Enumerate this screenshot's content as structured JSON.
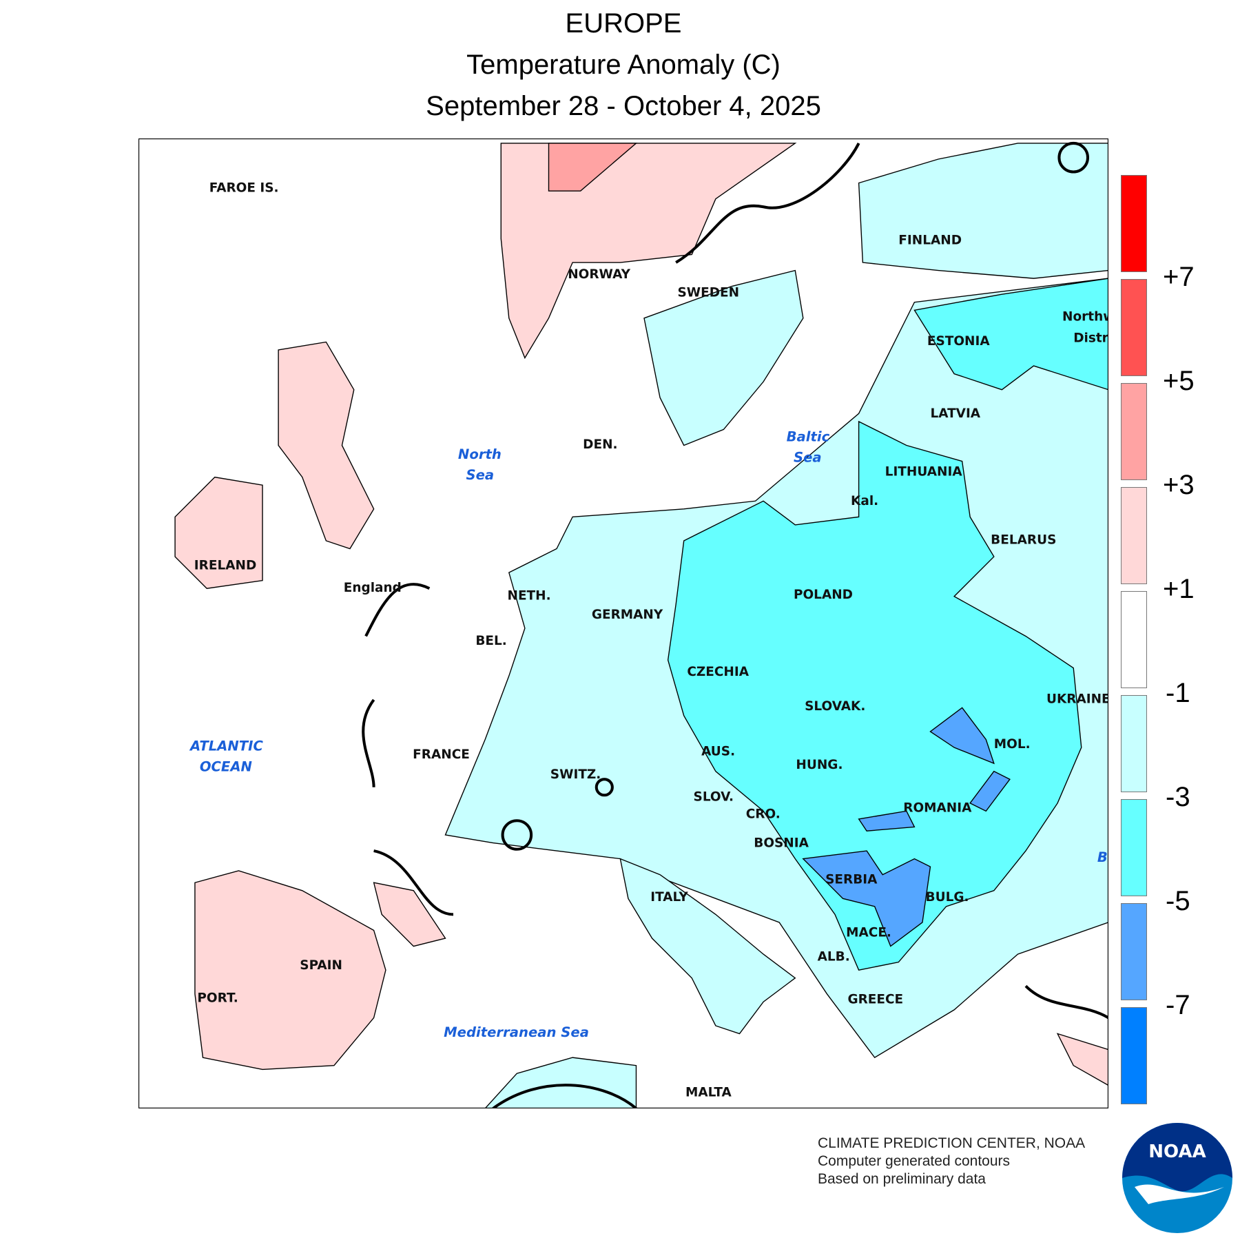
{
  "title": {
    "line1": "EUROPE",
    "line2": "Temperature Anomaly (C)",
    "line3": "September 28 - October 4, 2025"
  },
  "map": {
    "country_labels": [
      "FAROE IS.",
      "NORWAY",
      "SWEDEN",
      "FINLAND",
      "ESTONIA",
      "LATVIA",
      "LITHUANIA",
      "Kal.",
      "BELARUS",
      "POLAND",
      "GERMANY",
      "DEN.",
      "NETH.",
      "BEL.",
      "England",
      "IRELAND",
      "FRANCE",
      "SWITZ.",
      "AUS.",
      "CZECHIA",
      "SLOVAK.",
      "HUNG.",
      "UKRAINE",
      "MOL.",
      "ROMANIA",
      "SLOV.",
      "CRO.",
      "BOSNIA",
      "SERBIA",
      "BULG.",
      "MACE.",
      "ALB.",
      "GREECE",
      "ITALY",
      "SPAIN",
      "PORT.",
      "MALTA",
      "Northw",
      "Distri"
    ],
    "sea_labels": [
      "North",
      "Sea",
      "Baltic",
      "Sea",
      "ATLANTIC",
      "OCEAN",
      "Mediterranean Sea",
      "B"
    ]
  },
  "legend": {
    "colors": [
      "#ff0000",
      "#ff5252",
      "#ffa3a3",
      "#ffd8d8",
      "#ffffff",
      "#c8ffff",
      "#66ffff",
      "#55a6ff",
      "#0080ff"
    ],
    "labels": [
      "+7",
      "+5",
      "+3",
      "+1",
      "-1",
      "-3",
      "-5",
      "-7"
    ]
  },
  "footer": {
    "line1": "CLIMATE PREDICTION CENTER, NOAA",
    "line2": "Computer generated contours",
    "line3": "Based on preliminary data"
  },
  "logo": {
    "text": "NOAA",
    "colors": [
      "#003087",
      "#0085ca"
    ]
  }
}
